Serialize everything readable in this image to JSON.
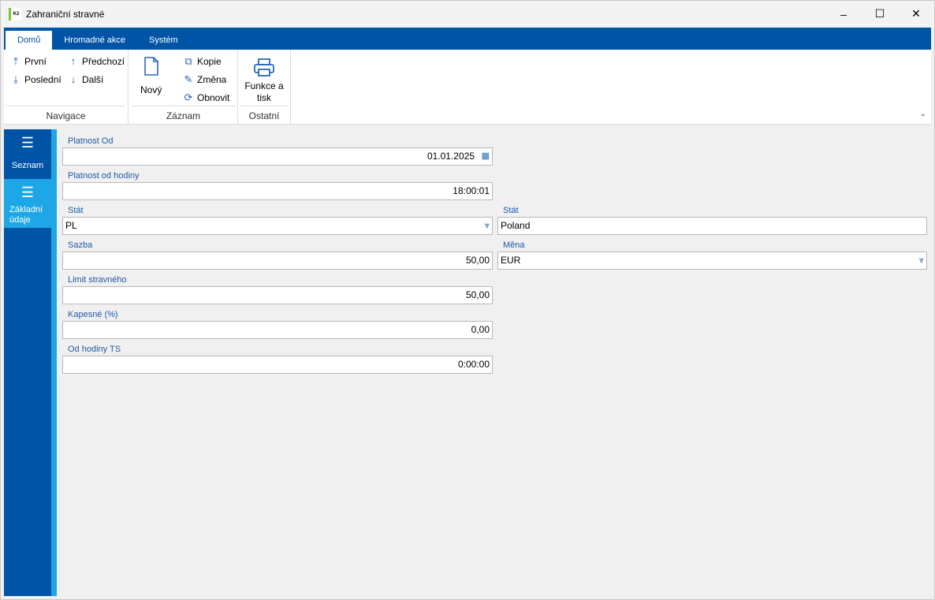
{
  "window": {
    "title": "Zahraniční stravné",
    "logo_text": "K2",
    "controls": [
      "minimize",
      "maximize",
      "close"
    ]
  },
  "tabs": [
    {
      "label": "Domů",
      "active": true
    },
    {
      "label": "Hromadné akce"
    },
    {
      "label": "Systém"
    }
  ],
  "ribbon": {
    "groups": [
      {
        "label": "Navigace",
        "items": [
          {
            "label": "První",
            "icon": "arrow-to-top-icon"
          },
          {
            "label": "Poslední",
            "icon": "arrow-to-bottom-icon"
          },
          {
            "label": "Předchozí",
            "icon": "arrow-up-icon"
          },
          {
            "label": "Další",
            "icon": "arrow-down-icon"
          }
        ]
      },
      {
        "label": "Záznam",
        "items": [
          {
            "label": "Nový",
            "icon": "new-document-icon"
          },
          {
            "label": "Kopie",
            "icon": "copy-icon"
          },
          {
            "label": "Změna",
            "icon": "pencil-icon"
          },
          {
            "label": "Obnovit",
            "icon": "refresh-icon"
          }
        ]
      },
      {
        "label": "Ostatní",
        "items": [
          {
            "label": "Funkce a tisk",
            "icon": "printer-icon"
          }
        ]
      }
    ]
  },
  "sidebar": {
    "items": [
      {
        "label": "Seznam",
        "icon": "hamburger-icon"
      },
      {
        "label": "Základní údaje",
        "icon": "list-icon",
        "active": true
      }
    ]
  },
  "form": {
    "platnost_od": {
      "label": "Platnost Od",
      "value": "01.01.2025"
    },
    "platnost_od_hodiny": {
      "label": "Platnost od hodiny",
      "value": "18:00:01"
    },
    "stat_kod": {
      "label": "Stát",
      "value": "PL"
    },
    "stat_nazev": {
      "label": "Stát",
      "value": "Poland"
    },
    "sazba": {
      "label": "Sazba",
      "value": "50,00"
    },
    "mena": {
      "label": "Měna",
      "value": "EUR"
    },
    "limit": {
      "label": "Limit stravného",
      "value": "50,00"
    },
    "kapesne": {
      "label": "Kapesné (%)",
      "value": "0,00"
    },
    "od_hodiny_ts": {
      "label": "Od hodiny TS",
      "value": "0:00:00"
    }
  },
  "colors": {
    "accent": "#0054a6",
    "active": "#1ea7e6",
    "label": "#1e5aa8"
  }
}
